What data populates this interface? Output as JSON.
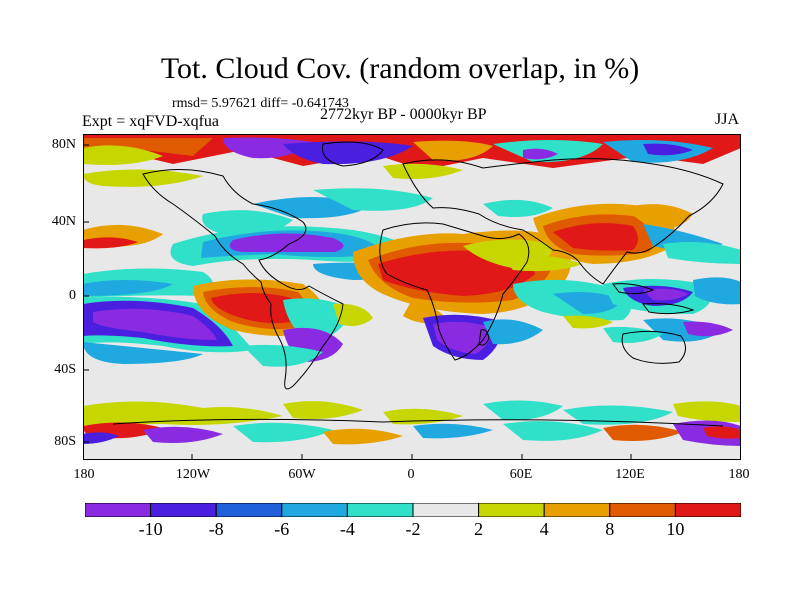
{
  "title": "Tot. Cloud Cov. (random overlap, in %)",
  "stats": "rmsd= 5.97621 diff= -0.641743",
  "experiment": "Expt = xqFVD-xqfua",
  "period": "2772kyr BP - 0000kyr BP",
  "season": "JJA",
  "lat_labels": [
    "80N",
    "40N",
    "0",
    "40S",
    "80S"
  ],
  "lon_labels": [
    "180",
    "120W",
    "60W",
    "0",
    "60E",
    "120E",
    "180"
  ],
  "colorbar": {
    "colors": [
      "#8a2be2",
      "#4b1fe0",
      "#2060d8",
      "#20a8e0",
      "#30e0c8",
      "#e8e8e8",
      "#c8d600",
      "#e8a000",
      "#e05a00",
      "#e01818"
    ],
    "labels": [
      "-10",
      "-8",
      "-6",
      "-4",
      "-2",
      "2",
      "4",
      "8",
      "10"
    ]
  }
}
